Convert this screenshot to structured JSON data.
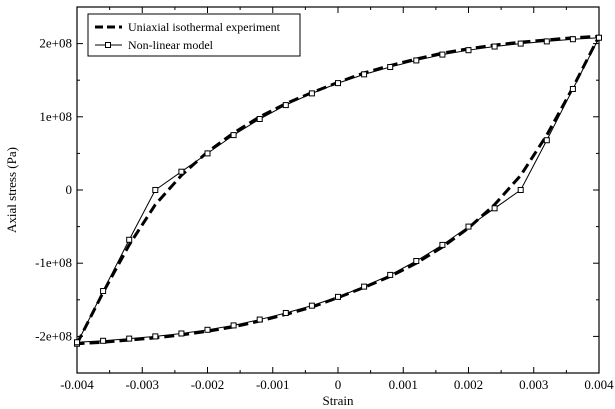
{
  "chart_data": {
    "type": "line",
    "title": "",
    "xlabel": "Strain",
    "ylabel": "Axial stress (Pa)",
    "xlim": [
      -0.004,
      0.004
    ],
    "ylim": [
      -250000000,
      250000000
    ],
    "xticks": [
      -0.004,
      -0.003,
      -0.002,
      -0.001,
      0,
      0.001,
      0.002,
      0.003,
      0.004
    ],
    "xtick_labels": [
      "-0.004",
      "-0.003",
      "-0.002",
      "-0.001",
      "0",
      "0.001",
      "0.002",
      "0.003",
      "0.004"
    ],
    "yticks": [
      -200000000,
      -100000000,
      0,
      100000000,
      200000000
    ],
    "ytick_labels": [
      "-2e+08",
      "-1e+08",
      "0",
      "1e+08",
      "2e+08"
    ],
    "grid": false,
    "legend_position": "top-left",
    "series": [
      {
        "name": "Uniaxial isothermal experiment",
        "style": "dashed",
        "color": "#000000",
        "x": [
          -0.004,
          -0.0036,
          -0.0032,
          -0.0028,
          -0.0024,
          -0.002,
          -0.0016,
          -0.0012,
          -0.0008,
          -0.0004,
          0,
          0.0004,
          0.0008,
          0.0012,
          0.0016,
          0.002,
          0.0024,
          0.0028,
          0.0032,
          0.0036,
          0.004,
          0.0036,
          0.0032,
          0.0028,
          0.0024,
          0.002,
          0.0016,
          0.0012,
          0.0008,
          0.0004,
          0,
          -0.0004,
          -0.0008,
          -0.0012,
          -0.0016,
          -0.002,
          -0.0024,
          -0.0028,
          -0.0032,
          -0.0036,
          -0.004
        ],
        "y": [
          -210000000,
          -140000000,
          -75000000,
          -20000000,
          20000000,
          52000000,
          78000000,
          100000000,
          118000000,
          133000000,
          147000000,
          160000000,
          170000000,
          179000000,
          187000000,
          193000000,
          198000000,
          202000000,
          205000000,
          208000000,
          210000000,
          140000000,
          75000000,
          20000000,
          -20000000,
          -52000000,
          -78000000,
          -100000000,
          -118000000,
          -133000000,
          -147000000,
          -160000000,
          -170000000,
          -179000000,
          -187000000,
          -193000000,
          -198000000,
          -202000000,
          -205000000,
          -208000000,
          -210000000
        ]
      },
      {
        "name": "Non-linear model",
        "style": "solid-square-markers",
        "color": "#000000",
        "x": [
          -0.004,
          -0.0036,
          -0.0032,
          -0.0028,
          -0.0024,
          -0.002,
          -0.0016,
          -0.0012,
          -0.0008,
          -0.0004,
          0,
          0.0004,
          0.0008,
          0.0012,
          0.0016,
          0.002,
          0.0024,
          0.0028,
          0.0032,
          0.0036,
          0.004,
          0.0036,
          0.0032,
          0.0028,
          0.0024,
          0.002,
          0.0016,
          0.0012,
          0.0008,
          0.0004,
          0,
          -0.0004,
          -0.0008,
          -0.0012,
          -0.0016,
          -0.002,
          -0.0024,
          -0.0028,
          -0.0032,
          -0.0036,
          -0.004
        ],
        "y": [
          -210000000,
          -138000000,
          -68000000,
          0,
          25000000,
          50000000,
          75000000,
          97000000,
          116000000,
          132000000,
          146000000,
          158000000,
          168000000,
          177000000,
          185000000,
          191000000,
          196000000,
          200000000,
          203000000,
          206000000,
          208000000,
          138000000,
          68000000,
          0,
          -25000000,
          -50000000,
          -75000000,
          -97000000,
          -116000000,
          -132000000,
          -146000000,
          -158000000,
          -168000000,
          -177000000,
          -185000000,
          -191000000,
          -196000000,
          -200000000,
          -203000000,
          -206000000,
          -208000000
        ]
      }
    ]
  }
}
